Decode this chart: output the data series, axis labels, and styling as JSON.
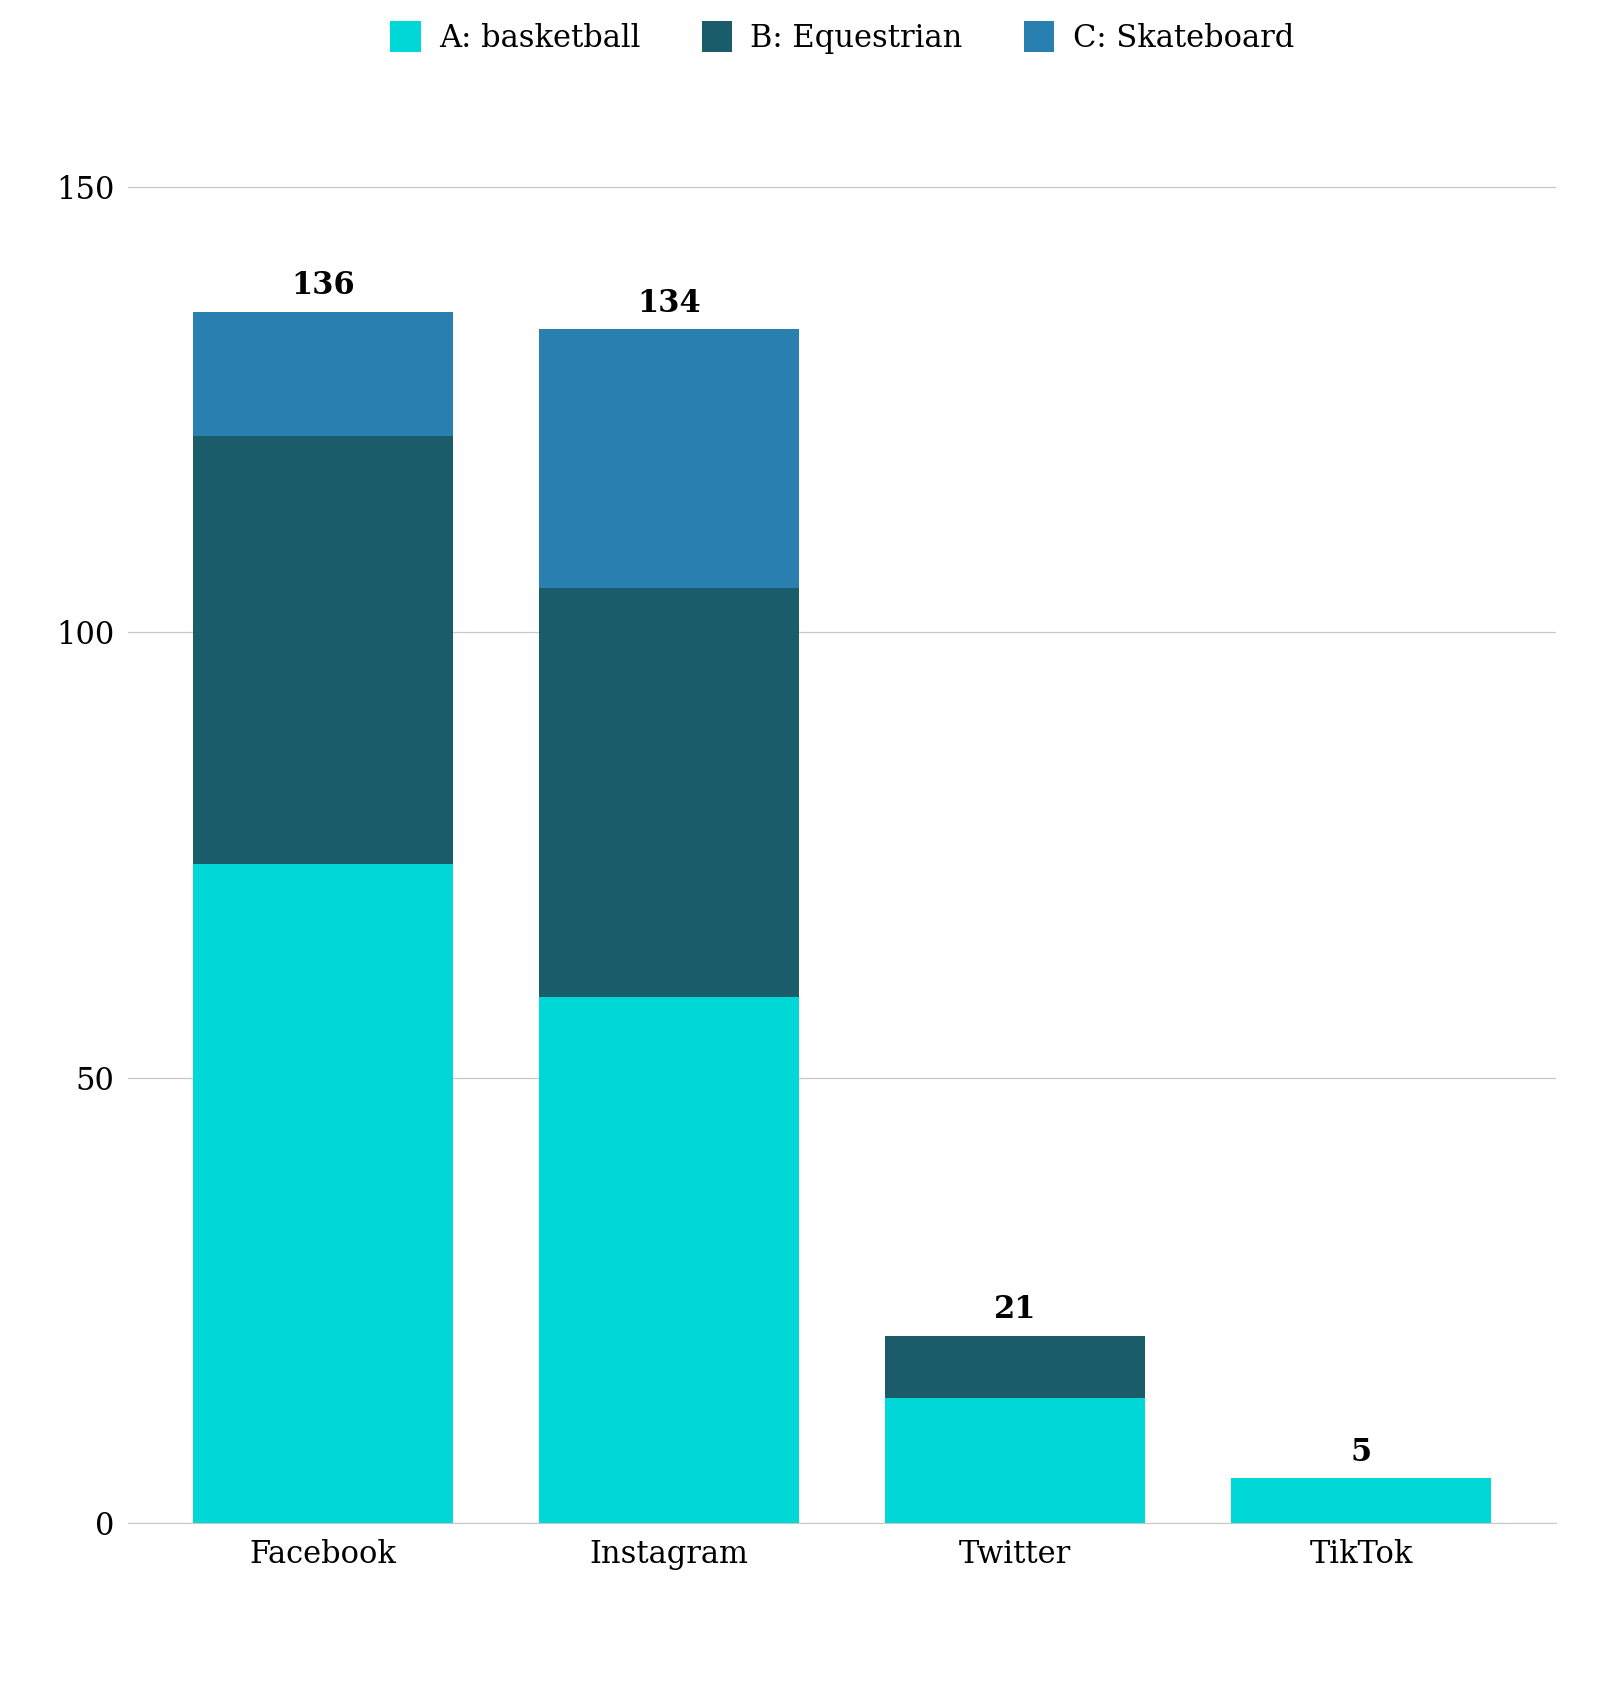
{
  "categories": [
    "Facebook",
    "Instagram",
    "Twitter",
    "TikTok"
  ],
  "totals": [
    136,
    134,
    21,
    5
  ],
  "basketball": [
    74,
    59,
    14,
    5
  ],
  "equestrian": [
    48,
    46,
    7,
    0
  ],
  "skateboard": [
    14,
    29,
    0,
    0
  ],
  "color_basketball": "#00D8D8",
  "color_equestrian": "#1A5C6A",
  "color_skateboard": "#2980B0",
  "legend_labels": [
    "A: basketball",
    "B: Equestrian",
    "C: Skateboard"
  ],
  "yticks": [
    0,
    50,
    100,
    150
  ],
  "ylim": [
    0,
    152
  ],
  "background_color": "#ffffff",
  "grid_color": "#c8c8c8",
  "tick_fontsize": 22,
  "annotation_fontsize": 22,
  "legend_fontsize": 22,
  "bar_width": 0.75
}
